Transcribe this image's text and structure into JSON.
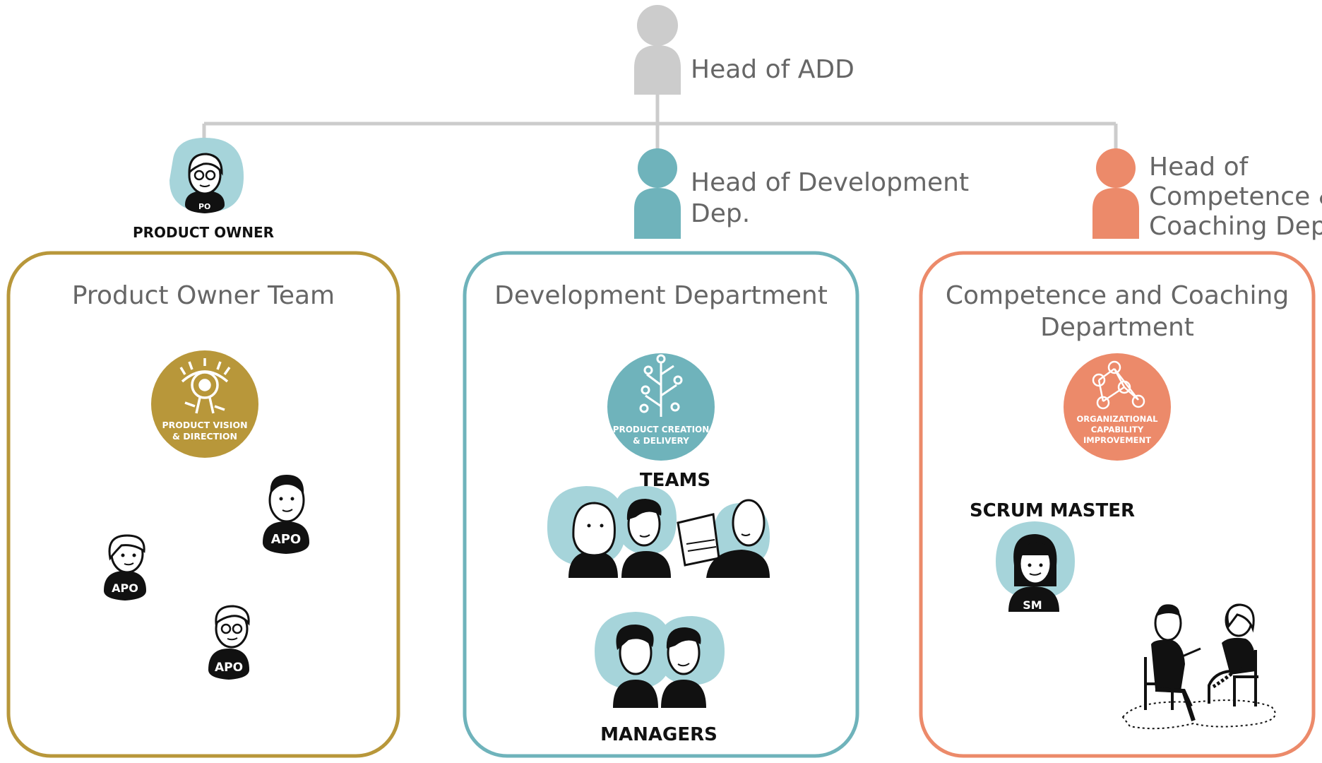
{
  "colors": {
    "connector": "#cccccc",
    "head_add": "#cccccc",
    "product_owner": "#b8973a",
    "development": "#6fb3bb",
    "competence": "#ec8a6a",
    "person_bg": "#a6d4da",
    "text": "#666666"
  },
  "hierarchy": {
    "head_add": {
      "label": "Head of ADD",
      "icon": "person-icon"
    },
    "product_owner": {
      "label": "PRODUCT OWNER",
      "badge": "PO"
    },
    "head_development": {
      "label_line1": "Head of Development",
      "label_line2": "Dep."
    },
    "head_competence": {
      "label_line1": "Head of",
      "label_line2": "Competence &",
      "label_line3": "Coaching Dep."
    }
  },
  "departments": {
    "product_owner_team": {
      "title": "Product Owner Team",
      "emblem_line1": "PRODUCT VISION",
      "emblem_line2": "& DIRECTION",
      "members": [
        "APO",
        "APO",
        "APO"
      ]
    },
    "development": {
      "title": "Development Department",
      "emblem_line1": "PRODUCT CREATION",
      "emblem_line2": "& DELIVERY",
      "teams_label": "TEAMS",
      "managers_label": "MANAGERS"
    },
    "competence": {
      "title_line1": "Competence and Coaching",
      "title_line2": "Department",
      "emblem_line1": "ORGANIZATIONAL",
      "emblem_line2": "CAPABILITY",
      "emblem_line3": "IMPROVEMENT",
      "scrum_master_label": "SCRUM MASTER",
      "sm_badge": "SM"
    }
  }
}
